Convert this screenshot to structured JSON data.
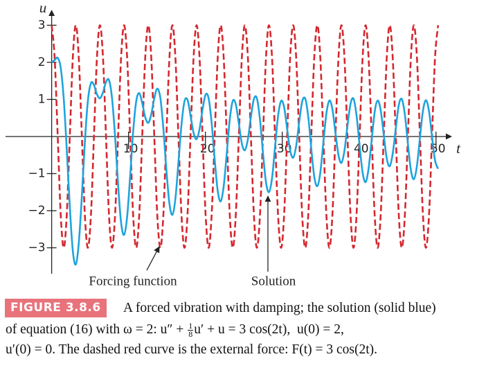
{
  "chart_data": {
    "type": "line",
    "xlabel": "t",
    "ylabel": "u",
    "xlim": [
      -6,
      52
    ],
    "ylim": [
      -3.7,
      3.4
    ],
    "xticks": [
      10,
      20,
      30,
      40,
      50
    ],
    "yticks": [
      {
        "value": -3,
        "label": "−3"
      },
      {
        "value": -2,
        "label": "−2"
      },
      {
        "value": -1,
        "label": "−1"
      },
      1,
      2,
      3
    ],
    "x": [
      0,
      0.39,
      0.79,
      1.18,
      1.57,
      1.96,
      2.36,
      2.75,
      3.14,
      3.53,
      3.93,
      4.32,
      4.71,
      5.11,
      5.5,
      5.89,
      6.28,
      6.68,
      7.07,
      7.46,
      7.85,
      8.25,
      8.64,
      9.03,
      9.42,
      9.82,
      10.21,
      10.6,
      11.0,
      11.39,
      11.78,
      12.17,
      12.57,
      12.96,
      13.35,
      13.74,
      14.14,
      14.53,
      14.92,
      15.32,
      15.71,
      16.1,
      16.49,
      16.89,
      17.28,
      17.67,
      18.06,
      18.46,
      18.85,
      19.24,
      19.63,
      20.03,
      20.42,
      20.81,
      21.21,
      21.6,
      21.99,
      22.38,
      22.78,
      23.17,
      23.56,
      23.95,
      24.35,
      24.74,
      25.13,
      25.53,
      25.92,
      26.31,
      26.7,
      27.1,
      27.49,
      27.88,
      28.27,
      28.67,
      29.06,
      29.45,
      29.85,
      30.24,
      30.63,
      31.02,
      31.42,
      31.81,
      32.2,
      32.59,
      32.99,
      33.38,
      33.77,
      34.16,
      34.56,
      34.95,
      35.34,
      35.74,
      36.13,
      36.52,
      36.91,
      37.31,
      37.7,
      38.09,
      38.48,
      38.88,
      39.27,
      39.66,
      40.06,
      40.45,
      40.84,
      41.23,
      41.63,
      42.02,
      42.41,
      42.8,
      43.2,
      43.59,
      43.98,
      44.37,
      44.77,
      45.16,
      45.55,
      45.95,
      46.34,
      46.73,
      47.12,
      47.52,
      47.91,
      48.3,
      48.69,
      49.09,
      49.48,
      49.87,
      50.27
    ],
    "series": [
      {
        "name": "Forcing function",
        "color": "#d4272e",
        "dashed": true,
        "values": [
          3,
          2.12,
          0,
          -2.12,
          -3,
          -2.12,
          0,
          2.12,
          3,
          2.12,
          0,
          -2.12,
          -3,
          -2.12,
          0,
          2.12,
          3,
          2.12,
          0,
          -2.12,
          -3,
          -2.12,
          0,
          2.12,
          3,
          2.12,
          0,
          -2.12,
          -3,
          -2.12,
          0,
          2.12,
          3,
          2.12,
          0,
          -2.12,
          -3,
          -2.12,
          0,
          2.12,
          3,
          2.12,
          0,
          -2.12,
          -3,
          -2.12,
          0,
          2.12,
          3,
          2.12,
          0,
          -2.12,
          -3,
          -2.12,
          0,
          2.12,
          3,
          2.12,
          0,
          -2.12,
          -3,
          -2.12,
          0,
          2.12,
          3,
          2.12,
          0,
          -2.12,
          -3,
          -2.12,
          0,
          2.12,
          3,
          2.12,
          0,
          -2.12,
          -3,
          -2.12,
          0,
          2.12,
          3,
          2.12,
          0,
          -2.12,
          -3,
          -2.12,
          0,
          2.12,
          3,
          2.12,
          0,
          -2.12,
          -3,
          -2.12,
          0,
          2.12,
          3,
          2.12,
          0,
          -2.12,
          -3,
          -2.12,
          0,
          2.12,
          3,
          2.12,
          0,
          -2.12,
          -3,
          -2.12,
          0,
          2.12,
          3,
          2.12,
          0,
          -2.12,
          -3,
          -2.12,
          0,
          2.12,
          3,
          2.12,
          0,
          -2.12,
          -3,
          -2.12,
          0,
          2.12,
          3
        ]
      },
      {
        "name": "Solution",
        "color": "#1ea3dc",
        "dashed": false,
        "values": [
          2.0,
          2.06,
          2.12,
          1.85,
          1.02,
          -0.34,
          -1.89,
          -3.08,
          -3.45,
          -2.87,
          -1.6,
          -0.15,
          0.96,
          1.44,
          1.39,
          1.14,
          1.03,
          1.19,
          1.47,
          1.52,
          1.04,
          0,
          -1.29,
          -2.32,
          -2.65,
          -2.16,
          -1.07,
          0.13,
          0.95,
          1.17,
          0.9,
          0.52,
          0.37,
          0.6,
          1.03,
          1.29,
          1.04,
          0.22,
          -0.89,
          -1.81,
          -2.11,
          -1.67,
          -0.7,
          0.32,
          0.95,
          0.99,
          0.57,
          0.1,
          -0.07,
          0.2,
          0.73,
          1.13,
          1.03,
          0.37,
          -0.62,
          -1.46,
          -1.75,
          -1.34,
          -0.45,
          0.46,
          0.96,
          0.87,
          0.35,
          -0.19,
          -0.37,
          -0.07,
          0.53,
          1.01,
          1.03,
          0.46,
          -0.44,
          -1.23,
          -1.5,
          -1.12,
          -0.28,
          0.55,
          0.96,
          0.79,
          0.21,
          -0.37,
          -0.57,
          -0.25,
          0.39,
          0.94,
          1.02,
          0.53,
          -0.32,
          -1.08,
          -1.34,
          -0.97,
          -0.17,
          0.62,
          0.97,
          0.74,
          0.11,
          -0.5,
          -0.71,
          -0.38,
          0.29,
          0.88,
          1.02,
          0.57,
          -0.24,
          -0.97,
          -1.23,
          -0.86,
          -0.09,
          0.66,
          0.97,
          0.71,
          0.05,
          -0.59,
          -0.8,
          -0.46,
          0.22,
          0.85,
          1.01,
          0.59,
          -0.19,
          -0.9,
          -1.15,
          -0.79,
          -0.03,
          0.69,
          0.98,
          0.68,
          0,
          -0.64,
          -0.87
        ]
      }
    ]
  },
  "caption": {
    "label": "FIGURE 3.8.6",
    "line1": "A forced vibration with damping; the solution (solid blue)",
    "line2_before": "of equation (16) with ω = 2: u″ + ",
    "fraction_numerator": "1",
    "fraction_denominator": "8",
    "line2_after": "u′ + u = 3 cos(2t),  u(0) = 2,",
    "line3": "u′(0) = 0. The dashed red curve is the external force: F(t) = 3 cos(2t)."
  }
}
